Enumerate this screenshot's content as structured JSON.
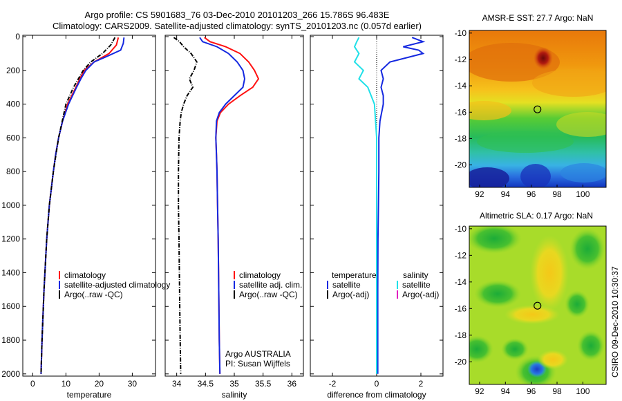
{
  "header": {
    "line1": "Argo profile: CS 5901683_76 03-Dec-2010 20101203_266 15.786S 96.483E",
    "line2": "Climatology: CARS2009. Satellite-adjusted climatology: synTS_20101203.nc (0.057d earlier)"
  },
  "side_stamp": "CSIRO 09-Dec-2010 10:30:37",
  "colors": {
    "climatology": "#ff1010",
    "satellite": "#1428e0",
    "argo": "#000000",
    "salinity_satellite": "#20e0e8",
    "salinity_argo_adj": "#e020c0"
  },
  "chart_data": [
    {
      "type": "line",
      "xlabel": "temperature",
      "ylabel": "",
      "xlim": [
        -3,
        37
      ],
      "ylim": [
        2050,
        0
      ],
      "x_ticks": [
        0,
        10,
        20,
        30
      ],
      "y_ticks": [
        0,
        200,
        400,
        600,
        800,
        1000,
        1200,
        1400,
        1600,
        1800,
        2000
      ],
      "legend": {
        "placement": "lower-right"
      },
      "series": [
        {
          "name": "climatology",
          "style": "solid",
          "depth": [
            5,
            50,
            100,
            150,
            200,
            250,
            300,
            400,
            500,
            600,
            700,
            800,
            1000,
            1200,
            1500,
            1800,
            2000
          ],
          "values": [
            25.8,
            25.2,
            23.0,
            18.5,
            15.5,
            14.2,
            13.0,
            10.5,
            9.0,
            7.8,
            6.9,
            6.2,
            5.0,
            4.2,
            3.4,
            2.8,
            2.5
          ]
        },
        {
          "name": "satellite-adjusted climatology",
          "style": "solid",
          "depth": [
            5,
            40,
            80,
            120,
            150,
            200,
            250,
            300,
            400,
            500,
            600,
            700,
            800,
            1000,
            1200,
            1500,
            1800,
            2000
          ],
          "values": [
            27.5,
            27.3,
            26.5,
            22.0,
            18.5,
            16.0,
            14.5,
            13.2,
            10.8,
            9.0,
            7.8,
            6.9,
            6.2,
            5.0,
            4.2,
            3.4,
            2.8,
            2.5
          ]
        },
        {
          "name": "Argo(..raw -QC)",
          "style": "dashdot",
          "depth": [
            5,
            50,
            100,
            150,
            200,
            300,
            400,
            500,
            600,
            800,
            1000,
            1200,
            1500,
            1800,
            2000
          ],
          "values": [
            24.8,
            23.5,
            21.0,
            17.5,
            15.2,
            12.3,
            10.0,
            8.9,
            7.8,
            6.2,
            5.0,
            4.2,
            3.4,
            2.8,
            2.5
          ]
        }
      ]
    },
    {
      "type": "line",
      "xlabel": "salinity",
      "ylabel": "",
      "xlim": [
        33.8,
        36.2
      ],
      "ylim": [
        2050,
        0
      ],
      "x_ticks": [
        34,
        34.5,
        35,
        35.5,
        36
      ],
      "y_ticks": [
        0,
        200,
        400,
        600,
        800,
        1000,
        1200,
        1400,
        1600,
        1800,
        2000
      ],
      "legend": {
        "placement": "lower-right"
      },
      "annotation": [
        "Argo AUSTRALIA",
        "PI: Susan Wijffels"
      ],
      "series": [
        {
          "name": "climatology",
          "style": "solid",
          "depth": [
            5,
            30,
            60,
            100,
            150,
            200,
            250,
            300,
            350,
            400,
            450,
            500,
            600,
            700,
            800,
            1000,
            1200,
            1500,
            1800,
            2000
          ],
          "values": [
            34.48,
            34.58,
            34.85,
            35.1,
            35.25,
            35.35,
            35.42,
            35.32,
            35.1,
            34.9,
            34.76,
            34.7,
            34.68,
            34.69,
            34.7,
            34.71,
            34.72,
            34.73,
            34.74,
            34.75
          ]
        },
        {
          "name": "satellite adj. clim.",
          "style": "solid",
          "depth": [
            5,
            30,
            60,
            100,
            150,
            200,
            250,
            300,
            350,
            400,
            450,
            500,
            600,
            700,
            800,
            1000,
            1200,
            1500,
            1800,
            2000
          ],
          "values": [
            34.4,
            34.45,
            34.7,
            34.9,
            35.05,
            35.15,
            35.18,
            35.15,
            35.0,
            34.85,
            34.74,
            34.69,
            34.68,
            34.69,
            34.7,
            34.71,
            34.72,
            34.73,
            34.74,
            34.75
          ]
        },
        {
          "name": "Argo(..raw -QC)",
          "style": "dashdot",
          "depth": [
            5,
            30,
            60,
            100,
            150,
            200,
            250,
            300,
            350,
            400,
            450,
            500,
            600,
            800,
            1000,
            1200,
            1500,
            1800,
            2000
          ],
          "values": [
            33.95,
            34.05,
            34.12,
            34.25,
            34.35,
            34.3,
            34.22,
            34.28,
            34.18,
            34.12,
            34.08,
            34.06,
            34.04,
            34.03,
            34.03,
            34.04,
            34.05,
            34.06,
            34.07
          ]
        }
      ]
    },
    {
      "type": "line",
      "xlabel": "difference from climatology",
      "ylabel": "",
      "xlim": [
        -3,
        3
      ],
      "ylim": [
        2050,
        0
      ],
      "x_ticks": [
        -2,
        0,
        2
      ],
      "y_ticks": [
        0,
        200,
        400,
        600,
        800,
        1000,
        1200,
        1400,
        1600,
        1800,
        2000
      ],
      "legend": {
        "placement": "lower-right",
        "headings": [
          "temperature",
          "salinity"
        ]
      },
      "series": [
        {
          "name": "satellite",
          "group": "temperature",
          "style": "solid",
          "depth": [
            5,
            30,
            60,
            80,
            100,
            150,
            200,
            250,
            300,
            350,
            400,
            500,
            600,
            800,
            1000,
            1200,
            1500,
            1800,
            2000
          ],
          "values": [
            1.6,
            2.1,
            1.2,
            1.9,
            2.1,
            0.6,
            0.2,
            0.3,
            0.2,
            0.3,
            0.3,
            0.15,
            0.1,
            0.1,
            0.08,
            0.06,
            0.05,
            0.05,
            0.05
          ]
        },
        {
          "name": "satellite",
          "group": "salinity",
          "style": "solid",
          "depth": [
            5,
            30,
            60,
            100,
            150,
            200,
            250,
            300,
            400,
            500,
            600,
            800,
            1000,
            1200,
            1500,
            1800,
            2000
          ],
          "values": [
            -0.8,
            -0.9,
            -1.0,
            -0.8,
            -1.0,
            -0.6,
            -0.8,
            -0.4,
            -0.1,
            -0.05,
            0.0,
            0.0,
            0.0,
            0.0,
            0.0,
            0.0,
            0.0
          ]
        },
        {
          "name": "Argo(-adj)",
          "group": "temperature",
          "style": "solid",
          "values": []
        },
        {
          "name": "Argo(-adj)",
          "group": "salinity",
          "style": "solid",
          "values": []
        }
      ]
    },
    {
      "type": "heatmap",
      "title": "AMSR-E SST: 27.7  Argo: NaN",
      "xlim": [
        91.2,
        101.8
      ],
      "ylim": [
        -21.7,
        -9.8
      ],
      "x_ticks": [
        92,
        94,
        96,
        98,
        100
      ],
      "y_ticks": [
        -10,
        -12,
        -14,
        -16,
        -18,
        -20
      ],
      "marker": {
        "lon": 96.483,
        "lat": -15.786
      }
    },
    {
      "type": "heatmap",
      "title": "Altimetric SLA: 0.17  Argo: NaN",
      "xlim": [
        91.2,
        101.8
      ],
      "ylim": [
        -21.7,
        -9.8
      ],
      "x_ticks": [
        92,
        94,
        96,
        98,
        100
      ],
      "y_ticks": [
        -10,
        -12,
        -14,
        -16,
        -18,
        -20
      ],
      "marker": {
        "lon": 96.483,
        "lat": -15.786
      }
    }
  ]
}
